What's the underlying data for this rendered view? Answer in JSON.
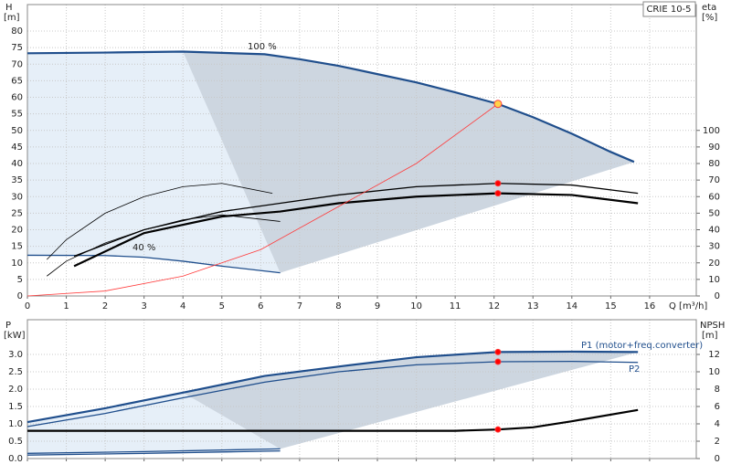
{
  "chart_data": [
    {
      "type": "line",
      "model": "CRIE 10-5",
      "xlabel": "Q [m³/h]",
      "ylabel": "H",
      "yunit": "[m]",
      "y2label": "eta",
      "y2unit": "[%]",
      "annotations": [
        "100 %",
        "40 %"
      ],
      "xlim": [
        0,
        17.2
      ],
      "xticks": [
        0,
        1,
        2,
        3,
        4,
        5,
        6,
        7,
        8,
        9,
        10,
        11,
        12,
        13,
        14,
        15,
        16
      ],
      "ylim": [
        0,
        88
      ],
      "yticks": [
        0,
        5,
        10,
        15,
        20,
        25,
        30,
        35,
        40,
        45,
        50,
        55,
        60,
        65,
        70,
        75,
        80
      ],
      "y2lim": [
        0,
        176
      ],
      "y2ticks": [
        0,
        10,
        20,
        30,
        40,
        50,
        60,
        70,
        80,
        90,
        100
      ],
      "grid": true,
      "shade_color": "#cdd6e0",
      "shade_light_color": "#e6eff8",
      "series": [
        {
          "color": "#1f4e8c",
          "style": "thick",
          "x": [
            0,
            2,
            4,
            6.1,
            7,
            8,
            9,
            10,
            11,
            12.1,
            13,
            14,
            15,
            15.6
          ],
          "values": [
            73.3,
            73.5,
            73.8,
            73,
            71.5,
            69.5,
            67,
            64.5,
            61.5,
            58,
            54,
            49,
            43.5,
            40.5
          ]
        },
        {
          "color": "#1f4e8c",
          "style": "medium",
          "x": [
            0,
            2,
            3,
            4,
            5,
            6.5
          ],
          "values": [
            12.3,
            12.2,
            11.7,
            10.5,
            9,
            7
          ]
        },
        {
          "color": "#000000",
          "style": "medium",
          "axis": "y2",
          "x": [
            1.2,
            3,
            5,
            6.5,
            8,
            10,
            12.1,
            14,
            15.7
          ],
          "values": [
            24,
            40,
            51,
            56,
            61,
            66,
            68,
            67,
            62
          ]
        },
        {
          "color": "#000000",
          "style": "thick",
          "axis": "y2",
          "x": [
            1.2,
            3,
            5,
            6.5,
            8,
            10,
            12.1,
            14,
            15.7
          ],
          "values": [
            18,
            38,
            48,
            51,
            56,
            60,
            62,
            61,
            56
          ]
        },
        {
          "color": "#000000",
          "style": "thin",
          "axis": "y2",
          "x": [
            0.5,
            1,
            2,
            3,
            4,
            5,
            6.3
          ],
          "values": [
            22,
            34,
            50,
            60,
            66,
            68,
            62
          ]
        },
        {
          "color": "#000000",
          "style": "thin",
          "axis": "y2",
          "x": [
            0.5,
            1,
            2,
            3,
            4,
            5,
            6.5
          ],
          "values": [
            12,
            21,
            32,
            40,
            46,
            49,
            45
          ]
        },
        {
          "color": "#ff3b3b",
          "style": "thin",
          "x": [
            0,
            2,
            4,
            6,
            8,
            10,
            12.1
          ],
          "values": [
            0,
            1.5,
            6,
            14,
            27,
            40,
            58
          ]
        }
      ],
      "markers": [
        {
          "x": 12.1,
          "y": 58,
          "color": "#ffd24a"
        },
        {
          "x": 12.1,
          "y": 68,
          "axis": "y2",
          "color": "#ff0000"
        },
        {
          "x": 12.1,
          "y": 62,
          "axis": "y2",
          "color": "#ff0000"
        }
      ]
    },
    {
      "type": "line",
      "ylabel": "P",
      "yunit": "[kW]",
      "y2label": "NPSH",
      "y2unit": "[m]",
      "xlim": [
        0,
        17.2
      ],
      "xticks": [
        0,
        1,
        2,
        3,
        4,
        5,
        6,
        7,
        8,
        9,
        10,
        11,
        12,
        13,
        14,
        15,
        16
      ],
      "ylim": [
        0,
        4
      ],
      "yticks": [
        {
          "value": 0,
          "label": "0.0"
        },
        0.5,
        {
          "value": 1,
          "label": "1.0"
        },
        1.5,
        {
          "value": 2,
          "label": "2.0"
        },
        2.5,
        {
          "value": 3,
          "label": "3.0"
        }
      ],
      "y2lim": [
        0,
        16
      ],
      "y2ticks": [
        0,
        2,
        4,
        6,
        8,
        10,
        12
      ],
      "grid": true,
      "shade_color": "#cdd6e0",
      "shade_light_color": "#e6eff8",
      "series": [
        {
          "name": "P1 (motor+freq.converter)",
          "color": "#1f4e8c",
          "style": "thick",
          "x": [
            0,
            2,
            4,
            6.1,
            8,
            10,
            12.1,
            14,
            15.7
          ],
          "values": [
            1.05,
            1.45,
            1.9,
            2.38,
            2.65,
            2.92,
            3.07,
            3.08,
            3.07
          ]
        },
        {
          "name": "P2",
          "color": "#1f4e8c",
          "style": "medium",
          "x": [
            0,
            2,
            4,
            6.1,
            8,
            10,
            12.1,
            14,
            15.7
          ],
          "values": [
            0.92,
            1.3,
            1.75,
            2.2,
            2.5,
            2.7,
            2.79,
            2.8,
            2.77
          ]
        },
        {
          "color": "#000000",
          "style": "thick",
          "axis": "y2",
          "x": [
            0,
            6,
            11,
            12.1,
            13,
            14,
            15.7
          ],
          "values": [
            3.2,
            3.2,
            3.2,
            3.35,
            3.6,
            4.3,
            5.6
          ]
        },
        {
          "color": "#1f4e8c",
          "style": "medium",
          "x": [
            0,
            3,
            6.5
          ],
          "values": [
            0.15,
            0.2,
            0.28
          ]
        },
        {
          "color": "#1f4e8c",
          "style": "medium",
          "x": [
            0,
            3,
            6.5
          ],
          "values": [
            0.1,
            0.15,
            0.22
          ]
        }
      ],
      "markers": [
        {
          "x": 12.1,
          "y": 3.07,
          "color": "#ff0000"
        },
        {
          "x": 12.1,
          "y": 2.79,
          "color": "#ff0000"
        },
        {
          "x": 12.1,
          "y": 3.35,
          "axis": "y2",
          "color": "#ff0000"
        }
      ]
    }
  ]
}
